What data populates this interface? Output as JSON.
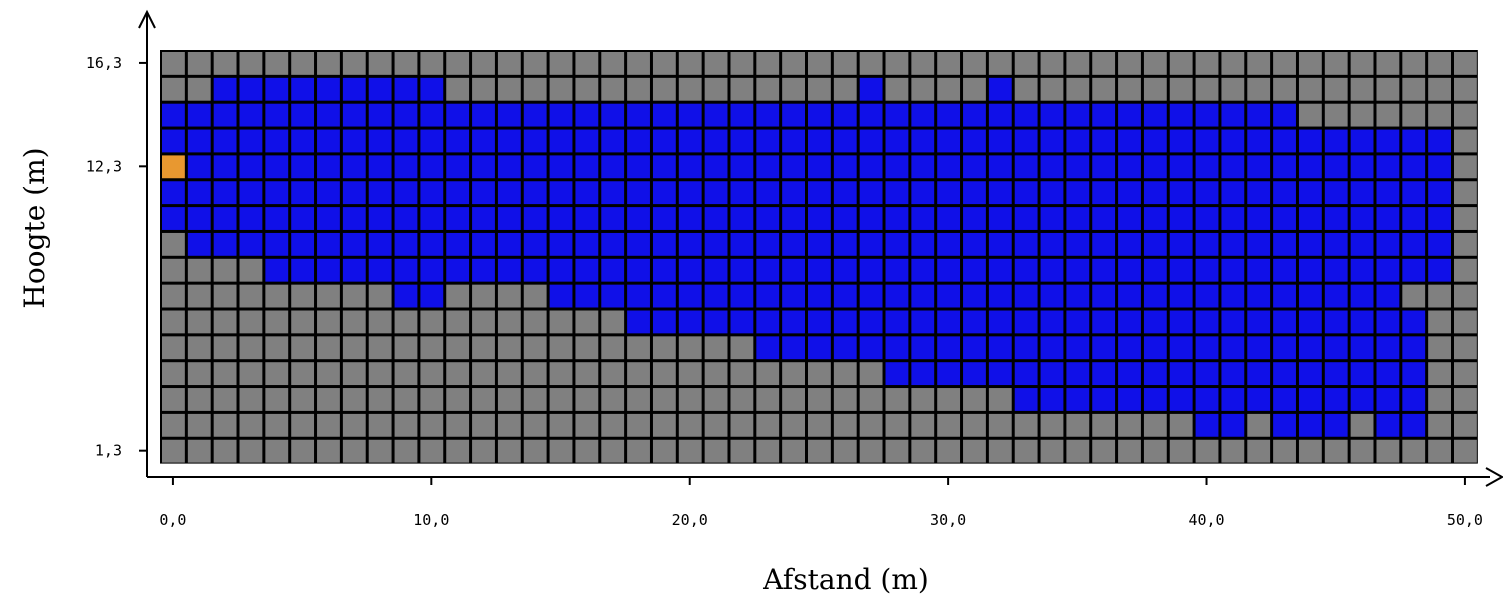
{
  "chart_data": {
    "type": "heatmap",
    "title": "",
    "xlabel": "Afstand (m)",
    "ylabel": "Hoogte (m)",
    "x_ticks": [
      "0,0",
      "10,0",
      "20,0",
      "30,0",
      "40,0",
      "50,0"
    ],
    "y_ticks": [
      "16,3",
      "12,3",
      "1,3"
    ],
    "xlim": [
      0,
      50
    ],
    "ylim": [
      1.3,
      16.3
    ],
    "columns": 51,
    "rows": 16,
    "colors": {
      "G": "#808080",
      "B": "#1010e8",
      "O": "#e89830",
      "border": "#000000"
    },
    "grid_rows_top_to_bottom": [
      "GGGGGGGGGGGGGGGGGGGGGGGGGGGGGGGGGGGGGGGGGGGGGGGGGGG",
      "GGBBBBBBBBBGGGGGGGGGGGGGGGGBGGGGBGGGGGGGGGGGGGGGGGG",
      "BBBBBBBBBBBBBBBBBBBBBBBBBBBBBBBBBBBBBBBBBBBBGGGGGGG",
      "BBBBBBBBBBBBBBBBBBBBBBBBBBBBBBBBBBBBBBBBBBBBBBBBBBG",
      "OBBBBBBBBBBBBBBBBBBBBBBBBBBBBBBBBBBBBBBBBBBBBBBBBBG",
      "BBBBBBBBBBBBBBBBBBBBBBBBBBBBBBBBBBBBBBBBBBBBBBBBBBG",
      "BBBBBBBBBBBBBBBBBBBBBBBBBBBBBBBBBBBBBBBBBBBBBBBBBBG",
      "GBBBBBBBBBBBBBBBBBBBBBBBBBBBBBBBBBBBBBBBBBBBBBBBBBG",
      "GGGGBBBBBBBBBBBBBBBBBBBBBBBBBBBBBBBBBBBBBBBBBBBBBBG",
      "GGGGGGGGGBBGGGGBBBBBBBBBBBBBBBBBBBBBBBBBBBBBBBBBGGG",
      "GGGGGGGGGGGGGGGGGGBBBBBBBBBBBBBBBBBBBBBBBBBBBBBBBGG",
      "GGGGGGGGGGGGGGGGGGGGGGGBBBBBBBBBBBBBBBBBBBBBBBBBBGG",
      "GGGGGGGGGGGGGGGGGGGGGGGGGGGGBBBBBBBBBBBBBBBBBBBBBGG",
      "GGGGGGGGGGGGGGGGGGGGGGGGGGGGGGGGGBBBBBBBBBBBBBBBBGG",
      "GGGGGGGGGGGGGGGGGGGGGGGGGGGGGGGGGGGGGGGGBBGBBBGBBGG",
      "GGGGGGGGGGGGGGGGGGGGGGGGGGGGGGGGGGGGGGGGGGGGGGGGGGG"
    ],
    "grid": false,
    "legend": "none"
  }
}
